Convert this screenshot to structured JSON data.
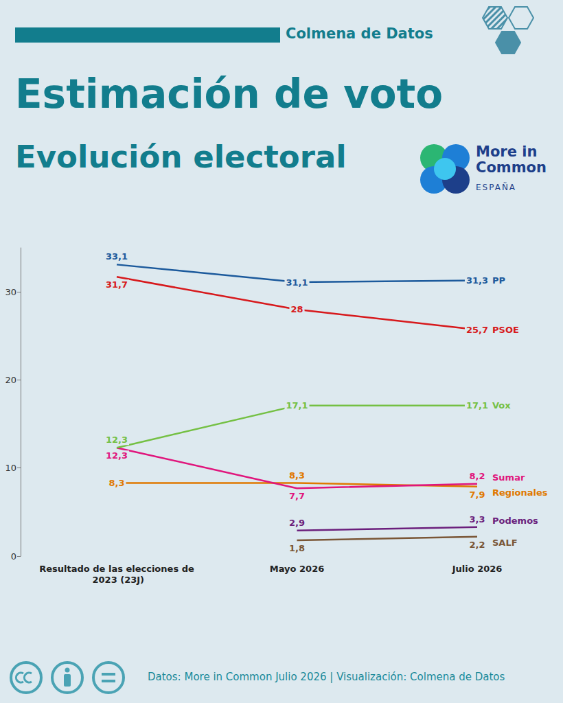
{
  "header": {
    "brand": "Colmena de Datos",
    "logo": "More in Common",
    "logo_country": "ESPAÑA"
  },
  "footer": "Datos: More in Common Julio 2026 | Visualización: Colmena de Datos",
  "chart_data": {
    "type": "line",
    "title": "Estimación de voto",
    "subtitle": "Evolución electoral",
    "categories": [
      "Resultado de las elecciones de 2023 (23J)",
      "Mayo 2026",
      "Julio 2026"
    ],
    "series": [
      {
        "name": "PP",
        "color": "#1c5a9c",
        "values": [
          33.1,
          31.1,
          31.3
        ],
        "value_labels": [
          "33,1",
          "31,1",
          "31,3"
        ]
      },
      {
        "name": "PSOE",
        "color": "#d7191c",
        "values": [
          31.7,
          28,
          25.7
        ],
        "value_labels": [
          "31,7",
          "28",
          "25,7"
        ]
      },
      {
        "name": "Vox",
        "color": "#74c043",
        "values": [
          12.3,
          17.1,
          17.1
        ],
        "value_labels": [
          "12,3",
          "17,1",
          "17,1"
        ]
      },
      {
        "name": "Sumar",
        "color": "#e0157c",
        "values": [
          12.3,
          7.7,
          8.2
        ],
        "value_labels": [
          "12,3",
          "7,7",
          "8,2"
        ]
      },
      {
        "name": "Regionales",
        "color": "#e07800",
        "values": [
          8.3,
          8.3,
          7.9
        ],
        "value_labels": [
          "8,3",
          "8,3",
          "7,9"
        ]
      },
      {
        "name": "Podemos",
        "color": "#6b1f7c",
        "values": [
          null,
          2.9,
          3.3
        ],
        "value_labels": [
          null,
          "2,9",
          "3,3"
        ]
      },
      {
        "name": "SALF",
        "color": "#7a5636",
        "values": [
          null,
          1.8,
          2.2
        ],
        "value_labels": [
          null,
          "1,8",
          "2,2"
        ]
      }
    ],
    "ylim": [
      0,
      35
    ],
    "yticks": [
      0,
      10,
      20,
      30
    ],
    "grid": false,
    "data_labels": true
  }
}
